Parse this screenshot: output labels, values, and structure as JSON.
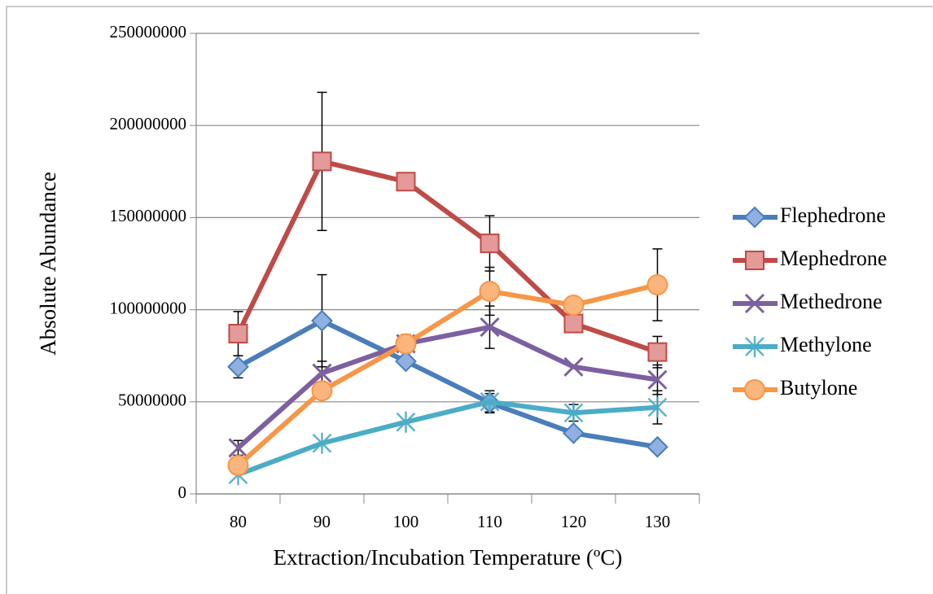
{
  "chart_data": {
    "type": "line",
    "categories": [
      "80",
      "90",
      "100",
      "110",
      "120",
      "130"
    ],
    "x_label": "Extraction/Incubation Temperature (ºC)",
    "y_label": "Absolute Abundance",
    "ylim": [
      0,
      250000000
    ],
    "yticks": [
      0,
      50000000,
      100000000,
      150000000,
      200000000,
      250000000
    ],
    "grid": true,
    "legend": "right",
    "series": [
      {
        "name": "Flephedrone",
        "color": "#4a7ebb",
        "marker": "diamond",
        "values": [
          69000000,
          94000000,
          72000000,
          49500000,
          33000000,
          25500000
        ],
        "errors": [
          6000000,
          25000000,
          null,
          5000000,
          null,
          null
        ]
      },
      {
        "name": "Mephedrone",
        "color": "#be4b48",
        "marker": "square",
        "values": [
          87000000,
          180500000,
          169500000,
          136000000,
          92500000,
          77000000
        ],
        "errors": [
          12000000,
          37500000,
          null,
          15000000,
          null,
          8500000
        ]
      },
      {
        "name": "Methedrone",
        "color": "#7d60a0",
        "marker": "x",
        "values": [
          25000000,
          65500000,
          81500000,
          90500000,
          69000000,
          62000000
        ],
        "errors": [
          4000000,
          6500000,
          5000000,
          11500000,
          null,
          8000000
        ]
      },
      {
        "name": "Methylone",
        "color": "#4bacc6",
        "marker": "star",
        "values": [
          10500000,
          27500000,
          39000000,
          50000000,
          44000000,
          47000000
        ],
        "errors": [
          null,
          null,
          null,
          6000000,
          4500000,
          9000000
        ]
      },
      {
        "name": "Butylone",
        "color": "#f79646",
        "marker": "circle",
        "values": [
          15500000,
          56000000,
          81500000,
          110000000,
          102500000,
          113500000
        ],
        "errors": [
          null,
          null,
          null,
          13000000,
          null,
          19500000
        ]
      }
    ]
  }
}
